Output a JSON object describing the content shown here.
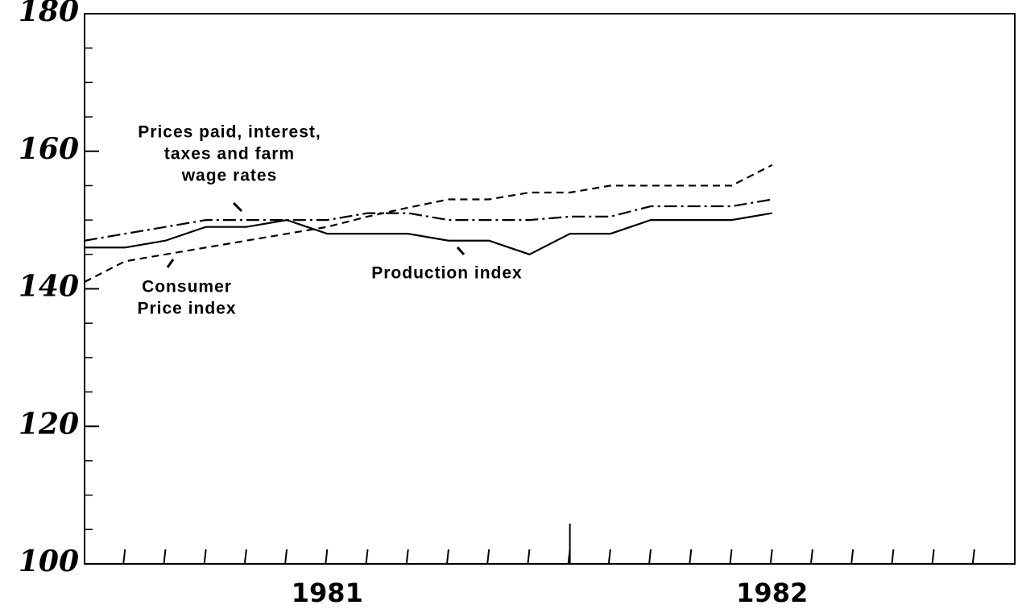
{
  "chart_data": {
    "type": "line",
    "x": [
      0,
      1,
      2,
      3,
      4,
      5,
      6,
      7,
      8,
      9,
      10,
      11,
      12,
      13,
      14,
      15,
      16,
      17
    ],
    "xlim": [
      0,
      23
    ],
    "xticks": [
      {
        "value": 6,
        "label": "1981"
      },
      {
        "value": 17,
        "label": "1982"
      }
    ],
    "minor_xticks": [
      1,
      2,
      3,
      4,
      5,
      6,
      7,
      8,
      9,
      10,
      11,
      12,
      13,
      14,
      15,
      16,
      17,
      18,
      19,
      20,
      21,
      22
    ],
    "year_divider": 12,
    "ylim": [
      100,
      180
    ],
    "yticks": [
      100,
      120,
      140,
      160,
      180
    ],
    "minor_yticks": [
      105,
      110,
      115,
      125,
      130,
      135,
      145,
      150,
      155,
      165,
      170,
      175
    ],
    "series": [
      {
        "name": "Production index",
        "color": "#000000",
        "style": "solid",
        "values": [
          146,
          146,
          147,
          149,
          149,
          150,
          148,
          148,
          148,
          147,
          147,
          145,
          148,
          148,
          150,
          150,
          150,
          151
        ]
      },
      {
        "name": "Prices paid, interest, taxes and farm wage rates",
        "color": "#000000",
        "style": "dashdot",
        "values": [
          147,
          148,
          149,
          150,
          150,
          150,
          150,
          151,
          151,
          150,
          150,
          150,
          150.5,
          150.5,
          152,
          152,
          152,
          153
        ]
      },
      {
        "name": "Consumer Price index",
        "color": "#000000",
        "style": "dashed",
        "values": [
          141,
          144,
          145,
          146,
          147,
          148,
          149,
          150.5,
          151.8,
          153,
          153,
          154,
          154,
          155,
          155,
          155,
          155,
          158
        ]
      }
    ],
    "annotations": [
      {
        "lines": [
          "Prices paid, interest,",
          "taxes and farm",
          "wage rates"
        ]
      },
      {
        "lines": [
          "Consumer",
          "Price index"
        ]
      },
      {
        "lines": [
          "Production index"
        ]
      }
    ]
  }
}
